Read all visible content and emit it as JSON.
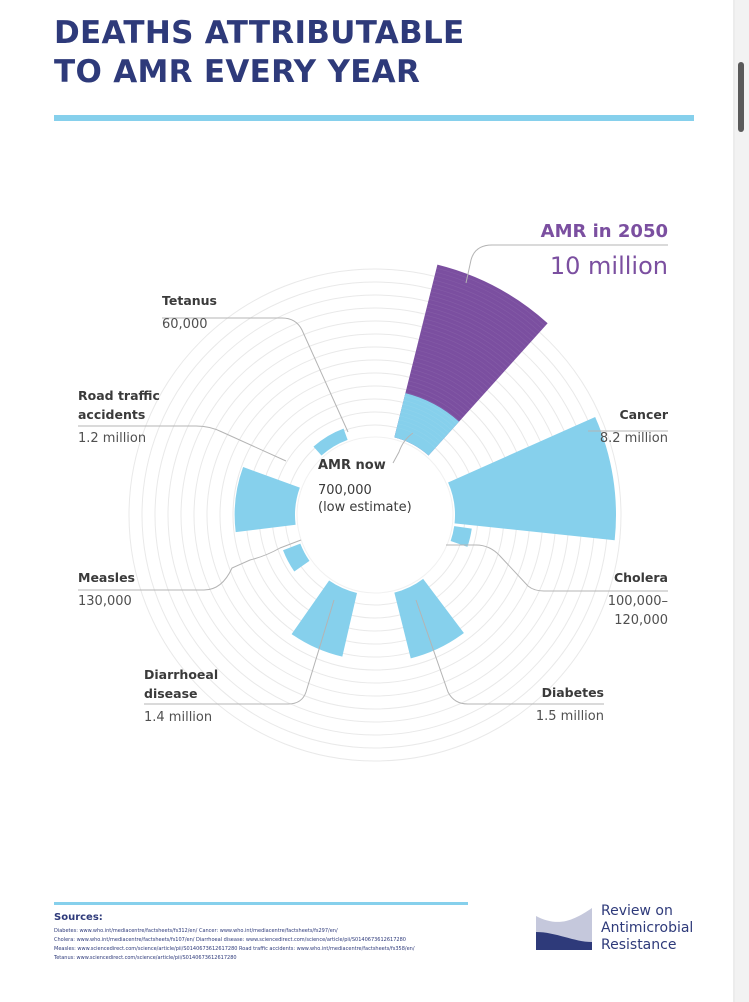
{
  "title_lines": [
    "DEATHS ATTRIBUTABLE",
    "TO AMR EVERY YEAR"
  ],
  "colors": {
    "title": "#2e3a7a",
    "accent_blue": "#86d0ec",
    "amr_purple": "#7b4fa0",
    "label_text": "#3a3a3a"
  },
  "chart_data": {
    "type": "radial-bar",
    "title": "DEATHS ATTRIBUTABLE TO AMR EVERY YEAR",
    "scale": "square-root (area proportional)",
    "categories": [
      {
        "name": "AMR in 2050",
        "value_text": "10 million",
        "value": 10000000,
        "color": "#7b4fa0"
      },
      {
        "name": "Cancer",
        "value_text": "8.2 million",
        "value": 8200000,
        "color": "#86d0ec"
      },
      {
        "name": "Cholera",
        "value_text": "100,000–\n120,000",
        "value": 120000,
        "color": "#86d0ec"
      },
      {
        "name": "Diabetes",
        "value_text": "1.5 million",
        "value": 1500000,
        "color": "#86d0ec"
      },
      {
        "name": "Diarrhoeal\ndisease",
        "value_text": "1.4 million",
        "value": 1400000,
        "color": "#86d0ec"
      },
      {
        "name": "Measles",
        "value_text": "130,000",
        "value": 130000,
        "color": "#86d0ec"
      },
      {
        "name": "Road traffic\naccidents",
        "value_text": "1.2 million",
        "value": 1200000,
        "color": "#86d0ec"
      },
      {
        "name": "Tetanus",
        "value_text": "60,000",
        "value": 60000,
        "color": "#86d0ec"
      },
      {
        "name": "AMR now",
        "value_text": "700,000\n(low estimate)",
        "value": 700000,
        "color": "#86d0ec"
      }
    ],
    "center": {
      "label": "AMR now",
      "value_line1": "700,000",
      "value_line2": "(low estimate)"
    }
  },
  "sources": {
    "title": "Sources:",
    "lines": [
      "Diabetes: www.who.int/mediacentre/factsheets/fs312/en/   Cancer: www.who.int/mediacentre/factsheets/fs297/en/",
      "Cholera: www.who.int/mediacentre/factsheets/fs107/en/   Diarrhoeal disease: www.sciencedirect.com/science/article/pii/S0140673612617280",
      "Measles: www.sciencedirect.com/science/article/pii/S0140673612617280   Road traffic accidents: www.who.int/mediacentre/factsheets/fs358/en/",
      "Tetanus: www.sciencedirect.com/science/article/pii/S0140673612617280"
    ]
  },
  "logo": {
    "lines": [
      "Review on",
      "Antimicrobial",
      "Resistance"
    ]
  }
}
